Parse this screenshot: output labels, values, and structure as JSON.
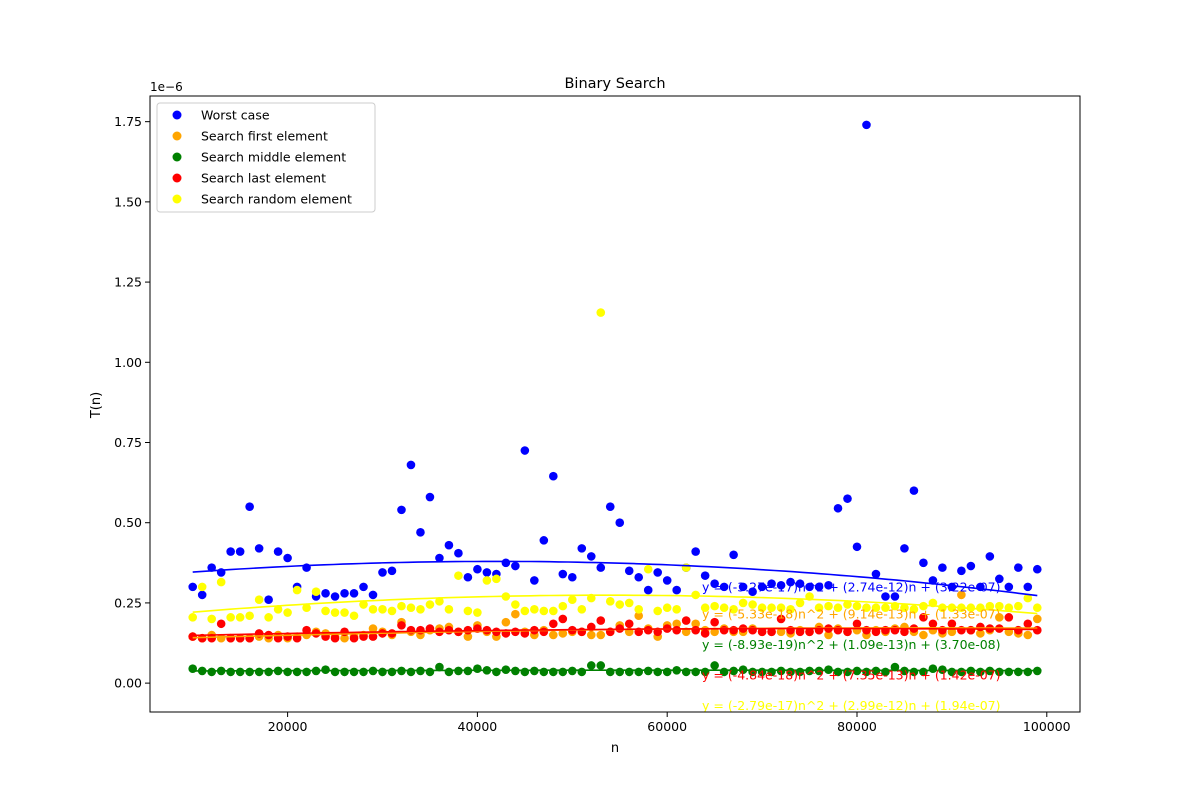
{
  "chart_data": {
    "type": "scatter",
    "title": "Binary Search",
    "xlabel": "n",
    "ylabel": "T(n)",
    "y_offset_label": "1e−6",
    "y_scale": 1e-06,
    "xlim": [
      5500,
      103500
    ],
    "ylim": [
      -0.09,
      1.83
    ],
    "x_ticks": [
      20000,
      40000,
      60000,
      80000,
      100000
    ],
    "x_tick_labels": [
      "20000",
      "40000",
      "60000",
      "80000",
      "100000"
    ],
    "y_ticks": [
      0.0,
      0.25,
      0.5,
      0.75,
      1.0,
      1.25,
      1.5,
      1.75
    ],
    "y_tick_labels": [
      "0.00",
      "0.25",
      "0.50",
      "0.75",
      "1.00",
      "1.25",
      "1.50",
      "1.75"
    ],
    "grid": false,
    "legend_position": "top-left",
    "x": [
      10000,
      11000,
      12000,
      13000,
      14000,
      15000,
      16000,
      17000,
      18000,
      19000,
      20000,
      21000,
      22000,
      23000,
      24000,
      25000,
      26000,
      27000,
      28000,
      29000,
      30000,
      31000,
      32000,
      33000,
      34000,
      35000,
      36000,
      37000,
      38000,
      39000,
      40000,
      41000,
      42000,
      43000,
      44000,
      45000,
      46000,
      47000,
      48000,
      49000,
      50000,
      51000,
      52000,
      53000,
      54000,
      55000,
      56000,
      57000,
      58000,
      59000,
      60000,
      61000,
      62000,
      63000,
      64000,
      65000,
      66000,
      67000,
      68000,
      69000,
      70000,
      71000,
      72000,
      73000,
      74000,
      75000,
      76000,
      77000,
      78000,
      79000,
      80000,
      81000,
      82000,
      83000,
      84000,
      85000,
      86000,
      87000,
      88000,
      89000,
      90000,
      91000,
      92000,
      93000,
      94000,
      95000,
      96000,
      97000,
      98000,
      99000
    ],
    "series": [
      {
        "name": "Worst case",
        "color": "#0000ff",
        "values": [
          0.3,
          0.275,
          0.36,
          0.345,
          0.41,
          0.41,
          0.55,
          0.42,
          0.26,
          0.41,
          0.39,
          0.3,
          0.36,
          0.27,
          0.28,
          0.27,
          0.28,
          0.28,
          0.3,
          0.275,
          0.345,
          0.35,
          0.54,
          0.68,
          0.47,
          0.58,
          0.39,
          0.43,
          0.405,
          0.33,
          0.355,
          0.345,
          0.34,
          0.375,
          0.365,
          0.725,
          0.32,
          0.445,
          0.645,
          0.34,
          0.33,
          0.42,
          0.395,
          0.36,
          0.55,
          0.5,
          0.35,
          0.33,
          0.29,
          0.345,
          0.32,
          0.29,
          0.36,
          0.41,
          0.335,
          0.31,
          0.3,
          0.4,
          0.3,
          0.285,
          0.3,
          0.31,
          0.305,
          0.315,
          0.31,
          0.3,
          0.3,
          0.305,
          0.545,
          0.575,
          0.425,
          1.74,
          0.34,
          0.27,
          0.27,
          0.42,
          0.6,
          0.375,
          0.32,
          0.36,
          0.3,
          0.35,
          0.365,
          0.3,
          0.395,
          0.325,
          0.3,
          0.36,
          0.3,
          0.355
        ]
      },
      {
        "name": "Search first element",
        "color": "#ffa500",
        "values": [
          0.145,
          0.14,
          0.15,
          0.14,
          0.14,
          0.14,
          0.14,
          0.145,
          0.14,
          0.15,
          0.14,
          0.145,
          0.15,
          0.16,
          0.155,
          0.145,
          0.14,
          0.145,
          0.15,
          0.17,
          0.16,
          0.15,
          0.19,
          0.16,
          0.15,
          0.165,
          0.17,
          0.175,
          0.16,
          0.145,
          0.18,
          0.16,
          0.145,
          0.19,
          0.215,
          0.16,
          0.15,
          0.165,
          0.15,
          0.155,
          0.16,
          0.16,
          0.15,
          0.15,
          0.16,
          0.18,
          0.16,
          0.21,
          0.17,
          0.145,
          0.18,
          0.185,
          0.16,
          0.185,
          0.165,
          0.16,
          0.17,
          0.16,
          0.16,
          0.17,
          0.16,
          0.16,
          0.16,
          0.155,
          0.165,
          0.16,
          0.175,
          0.15,
          0.17,
          0.16,
          0.165,
          0.15,
          0.165,
          0.16,
          0.17,
          0.175,
          0.16,
          0.15,
          0.165,
          0.155,
          0.16,
          0.275,
          0.165,
          0.155,
          0.165,
          0.205,
          0.16,
          0.155,
          0.15,
          0.2
        ]
      },
      {
        "name": "Search middle element",
        "color": "#008000",
        "values": [
          0.045,
          0.038,
          0.035,
          0.038,
          0.035,
          0.035,
          0.035,
          0.035,
          0.035,
          0.038,
          0.035,
          0.035,
          0.035,
          0.038,
          0.042,
          0.035,
          0.035,
          0.035,
          0.035,
          0.038,
          0.035,
          0.035,
          0.038,
          0.035,
          0.038,
          0.035,
          0.05,
          0.035,
          0.038,
          0.038,
          0.045,
          0.04,
          0.035,
          0.042,
          0.038,
          0.035,
          0.038,
          0.035,
          0.035,
          0.035,
          0.038,
          0.035,
          0.055,
          0.055,
          0.035,
          0.035,
          0.035,
          0.035,
          0.038,
          0.035,
          0.035,
          0.04,
          0.035,
          0.035,
          0.035,
          0.055,
          0.035,
          0.038,
          0.042,
          0.035,
          0.035,
          0.035,
          0.038,
          0.035,
          0.035,
          0.038,
          0.038,
          0.042,
          0.035,
          0.035,
          0.038,
          0.035,
          0.038,
          0.035,
          0.05,
          0.038,
          0.035,
          0.035,
          0.045,
          0.042,
          0.035,
          0.035,
          0.038,
          0.035,
          0.038,
          0.035,
          0.035,
          0.035,
          0.035,
          0.038
        ]
      },
      {
        "name": "Search last element",
        "color": "#ff0000",
        "values": [
          0.145,
          0.14,
          0.14,
          0.185,
          0.14,
          0.14,
          0.14,
          0.155,
          0.15,
          0.14,
          0.145,
          0.14,
          0.165,
          0.155,
          0.145,
          0.14,
          0.16,
          0.14,
          0.145,
          0.145,
          0.155,
          0.155,
          0.18,
          0.165,
          0.165,
          0.17,
          0.16,
          0.165,
          0.16,
          0.165,
          0.17,
          0.165,
          0.16,
          0.155,
          0.16,
          0.155,
          0.165,
          0.16,
          0.185,
          0.2,
          0.165,
          0.16,
          0.175,
          0.195,
          0.16,
          0.17,
          0.185,
          0.16,
          0.165,
          0.16,
          0.17,
          0.165,
          0.195,
          0.165,
          0.155,
          0.19,
          0.165,
          0.165,
          0.17,
          0.165,
          0.16,
          0.16,
          0.2,
          0.165,
          0.16,
          0.16,
          0.165,
          0.17,
          0.165,
          0.16,
          0.185,
          0.165,
          0.16,
          0.165,
          0.165,
          0.16,
          0.17,
          0.205,
          0.185,
          0.165,
          0.185,
          0.165,
          0.165,
          0.175,
          0.17,
          0.17,
          0.205,
          0.165,
          0.185,
          0.165
        ]
      },
      {
        "name": "Search random element",
        "color": "#ffff00",
        "values": [
          0.205,
          0.3,
          0.2,
          0.315,
          0.205,
          0.205,
          0.21,
          0.26,
          0.205,
          0.23,
          0.22,
          0.29,
          0.235,
          0.285,
          0.225,
          0.22,
          0.22,
          0.21,
          0.245,
          0.23,
          0.23,
          0.225,
          0.24,
          0.235,
          0.23,
          0.245,
          0.255,
          0.23,
          0.335,
          0.225,
          0.22,
          0.32,
          0.325,
          0.27,
          0.245,
          0.225,
          0.23,
          0.225,
          0.225,
          0.24,
          0.26,
          0.23,
          0.265,
          1.155,
          0.255,
          0.245,
          0.25,
          0.23,
          0.355,
          0.225,
          0.235,
          0.23,
          0.36,
          0.275,
          0.235,
          0.24,
          0.235,
          0.23,
          0.25,
          0.245,
          0.235,
          0.235,
          0.235,
          0.23,
          0.25,
          0.27,
          0.235,
          0.24,
          0.235,
          0.245,
          0.24,
          0.235,
          0.235,
          0.235,
          0.24,
          0.235,
          0.23,
          0.24,
          0.25,
          0.235,
          0.235,
          0.235,
          0.235,
          0.235,
          0.24,
          0.24,
          0.235,
          0.24,
          0.265,
          0.235
        ]
      }
    ],
    "fits": [
      {
        "color": "#0000ff",
        "coeffs": [
          -3.27e-17,
          2.74e-12,
          3.22e-07
        ],
        "label": "y = (-3.27e-17)n^2 + (2.74e-12)n + (3.22e-07)"
      },
      {
        "color": "#ffa500",
        "coeffs": [
          -5.33e-18,
          9.14e-13,
          1.33e-07
        ],
        "label": "y = (-5.33e-18)n^2 + (9.14e-13)n + (1.33e-07)"
      },
      {
        "color": "#008000",
        "coeffs": [
          -8.93e-19,
          1.09e-13,
          3.7e-08
        ],
        "label": "y = (-8.93e-19)n^2 + (1.09e-13)n + (3.70e-08)"
      },
      {
        "color": "#ff0000",
        "coeffs": [
          -4.84e-18,
          7.35e-13,
          1.42e-07
        ],
        "label": "y = (-4.84e-18)n^2 + (7.35e-13)n + (1.42e-07)"
      },
      {
        "color": "#ffff00",
        "coeffs": [
          -2.79e-17,
          2.99e-12,
          1.94e-07
        ],
        "label": "y = (-2.79e-17)n^2 + (2.99e-12)n + (1.94e-07)"
      }
    ],
    "fit_label_y": [
      0.3,
      0.215,
      0.12,
      0.025,
      -0.07
    ]
  }
}
